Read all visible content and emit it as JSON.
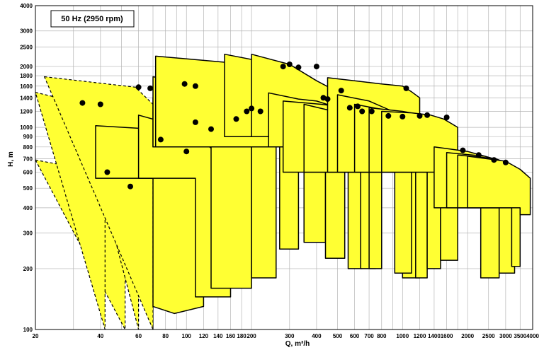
{
  "chart_data": {
    "type": "area",
    "title": "50 Hz (2950 rpm)",
    "xlabel": "Q, m³/h",
    "ylabel": "H, m",
    "xscale": "log",
    "yscale": "log",
    "xlim": [
      20,
      4000
    ],
    "ylim": [
      100,
      4000
    ],
    "grid": true,
    "x_tick_labels": [
      "20",
      "40",
      "60",
      "80",
      "100",
      "120",
      "140",
      "160",
      "180",
      "200",
      "300",
      "400",
      "500",
      "600",
      "700",
      "800",
      "1000",
      "1200",
      "1400",
      "1600",
      "2000",
      "2500",
      "3000",
      "3500",
      "4000"
    ],
    "y_tick_labels": [
      "100",
      "200",
      "300",
      "400",
      "500",
      "600",
      "700",
      "800",
      "900",
      "1000",
      "1200",
      "1400",
      "1600",
      "1800",
      "2000",
      "2500",
      "3000",
      "4000"
    ],
    "fill_color": "#ffff33",
    "series": [
      {
        "outline": "dashed",
        "points": [
          [
            18,
            690
          ],
          [
            40,
            600
          ],
          [
            52,
            500
          ],
          [
            52,
            100
          ]
        ]
      },
      {
        "outline": "dashed",
        "points": [
          [
            40,
            600
          ],
          [
            55,
            510
          ],
          [
            70,
            390
          ],
          [
            70,
            100
          ]
        ]
      },
      {
        "outline": "dashed",
        "points": [
          [
            18,
            1490
          ],
          [
            32,
            1320
          ],
          [
            42,
            1000
          ],
          [
            42,
            100
          ]
        ]
      },
      {
        "outline": "dashed",
        "points": [
          [
            32,
            1320
          ],
          [
            50,
            1200
          ],
          [
            60,
            1000
          ],
          [
            60,
            100
          ]
        ]
      },
      {
        "outline": "dashed",
        "points": [
          [
            22,
            1780
          ],
          [
            58,
            1580
          ],
          [
            70,
            1300
          ],
          [
            70,
            100
          ]
        ]
      },
      {
        "outline": "solid",
        "points": [
          [
            38,
            1020
          ],
          [
            70,
            980
          ],
          [
            100,
            800
          ],
          [
            120,
            600
          ],
          [
            120,
            130
          ],
          [
            88,
            120
          ],
          [
            70,
            130
          ],
          [
            70,
            560
          ],
          [
            38,
            560
          ]
        ]
      },
      {
        "outline": "solid",
        "points": [
          [
            60,
            1150
          ],
          [
            96,
            1000
          ],
          [
            130,
            790
          ],
          [
            160,
            600
          ],
          [
            160,
            145
          ],
          [
            110,
            145
          ],
          [
            110,
            560
          ],
          [
            60,
            560
          ]
        ]
      },
      {
        "outline": "solid",
        "points": [
          [
            70,
            1400
          ],
          [
            96,
            1300
          ],
          [
            130,
            1200
          ],
          [
            150,
            1100
          ],
          [
            170,
            1000
          ],
          [
            200,
            840
          ],
          [
            200,
            160
          ],
          [
            130,
            160
          ],
          [
            130,
            800
          ],
          [
            70,
            800
          ]
        ]
      },
      {
        "outline": "solid",
        "points": [
          [
            70,
            1780
          ],
          [
            110,
            1620
          ],
          [
            130,
            1550
          ],
          [
            145,
            1400
          ],
          [
            220,
            1260
          ],
          [
            260,
            1010
          ],
          [
            260,
            180
          ],
          [
            200,
            180
          ],
          [
            200,
            800
          ],
          [
            70,
            800
          ]
        ]
      },
      {
        "outline": "solid",
        "points": [
          [
            72,
            2250
          ],
          [
            150,
            2100
          ],
          [
            190,
            2050
          ],
          [
            220,
            1990
          ],
          [
            260,
            1850
          ],
          [
            330,
            1400
          ],
          [
            330,
            250
          ],
          [
            270,
            250
          ],
          [
            270,
            800
          ],
          [
            72,
            800
          ]
        ]
      },
      {
        "outline": "solid",
        "points": [
          [
            150,
            2300
          ],
          [
            250,
            2070
          ],
          [
            320,
            1860
          ],
          [
            400,
            1450
          ],
          [
            440,
            1350
          ],
          [
            440,
            270
          ],
          [
            350,
            270
          ],
          [
            350,
            900
          ],
          [
            150,
            900
          ]
        ]
      },
      {
        "outline": "solid",
        "points": [
          [
            200,
            2300
          ],
          [
            300,
            2050
          ],
          [
            400,
            1700
          ],
          [
            500,
            1500
          ],
          [
            540,
            1300
          ],
          [
            540,
            225
          ],
          [
            440,
            225
          ],
          [
            440,
            900
          ],
          [
            200,
            900
          ]
        ]
      },
      {
        "outline": "solid",
        "points": [
          [
            240,
            1480
          ],
          [
            330,
            1380
          ],
          [
            400,
            1350
          ],
          [
            500,
            1250
          ],
          [
            560,
            1200
          ],
          [
            650,
            900
          ],
          [
            650,
            200
          ],
          [
            560,
            200
          ],
          [
            560,
            800
          ],
          [
            240,
            800
          ]
        ]
      },
      {
        "outline": "solid",
        "points": [
          [
            280,
            1350
          ],
          [
            420,
            1300
          ],
          [
            560,
            1250
          ],
          [
            650,
            1130
          ],
          [
            750,
            1000
          ],
          [
            750,
            200
          ],
          [
            640,
            200
          ],
          [
            640,
            600
          ],
          [
            280,
            600
          ]
        ]
      },
      {
        "outline": "solid",
        "points": [
          [
            350,
            1300
          ],
          [
            480,
            1200
          ],
          [
            600,
            1150
          ],
          [
            720,
            1050
          ],
          [
            800,
            1000
          ],
          [
            800,
            200
          ],
          [
            700,
            200
          ],
          [
            700,
            600
          ],
          [
            350,
            600
          ]
        ]
      },
      {
        "outline": "solid",
        "points": [
          [
            450,
            1760
          ],
          [
            600,
            1700
          ],
          [
            800,
            1640
          ],
          [
            1000,
            1600
          ],
          [
            1100,
            1500
          ],
          [
            1200,
            1400
          ],
          [
            1200,
            180
          ],
          [
            1000,
            180
          ],
          [
            1000,
            600
          ],
          [
            450,
            600
          ]
        ]
      },
      {
        "outline": "solid",
        "points": [
          [
            500,
            1450
          ],
          [
            700,
            1350
          ],
          [
            900,
            1200
          ],
          [
            1000,
            1100
          ],
          [
            1100,
            1000
          ],
          [
            1100,
            190
          ],
          [
            920,
            190
          ],
          [
            920,
            600
          ],
          [
            500,
            600
          ]
        ]
      },
      {
        "outline": "solid",
        "points": [
          [
            600,
            1300
          ],
          [
            900,
            1200
          ],
          [
            1050,
            1150
          ],
          [
            1300,
            1000
          ],
          [
            1300,
            180
          ],
          [
            1150,
            180
          ],
          [
            1150,
            600
          ],
          [
            600,
            600
          ]
        ]
      },
      {
        "outline": "solid",
        "points": [
          [
            700,
            1250
          ],
          [
            1000,
            1200
          ],
          [
            1250,
            1150
          ],
          [
            1500,
            1000
          ],
          [
            1500,
            200
          ],
          [
            1300,
            200
          ],
          [
            1300,
            600
          ],
          [
            700,
            600
          ]
        ]
      },
      {
        "outline": "solid",
        "points": [
          [
            800,
            1200
          ],
          [
            1100,
            1180
          ],
          [
            1350,
            1150
          ],
          [
            1550,
            1100
          ],
          [
            1800,
            1000
          ],
          [
            1800,
            220
          ],
          [
            1500,
            220
          ],
          [
            1500,
            600
          ],
          [
            800,
            600
          ]
        ]
      },
      {
        "outline": "solid",
        "points": [
          [
            1400,
            800
          ],
          [
            2000,
            760
          ],
          [
            2400,
            720
          ],
          [
            2800,
            620
          ],
          [
            2800,
            180
          ],
          [
            2300,
            180
          ],
          [
            2300,
            400
          ],
          [
            1400,
            400
          ]
        ]
      },
      {
        "outline": "solid",
        "points": [
          [
            1600,
            750
          ],
          [
            2400,
            720
          ],
          [
            2900,
            680
          ],
          [
            3300,
            600
          ],
          [
            3300,
            190
          ],
          [
            2800,
            190
          ],
          [
            2800,
            400
          ],
          [
            1600,
            400
          ]
        ]
      },
      {
        "outline": "solid",
        "points": [
          [
            1800,
            730
          ],
          [
            2700,
            700
          ],
          [
            3100,
            660
          ],
          [
            3500,
            600
          ],
          [
            3500,
            205
          ],
          [
            3200,
            205
          ],
          [
            3200,
            400
          ],
          [
            1800,
            400
          ]
        ]
      },
      {
        "outline": "solid",
        "points": [
          [
            2000,
            720
          ],
          [
            3000,
            680
          ],
          [
            3500,
            620
          ],
          [
            3900,
            560
          ],
          [
            3900,
            370
          ],
          [
            3500,
            370
          ],
          [
            3500,
            400
          ],
          [
            2000,
            400
          ]
        ]
      }
    ],
    "points": [
      [
        43,
        600
      ],
      [
        55,
        510
      ],
      [
        33,
        1320
      ],
      [
        40,
        1300
      ],
      [
        60,
        1580
      ],
      [
        68,
        1560
      ],
      [
        76,
        870
      ],
      [
        100,
        760
      ],
      [
        110,
        1060
      ],
      [
        130,
        980
      ],
      [
        98,
        1640
      ],
      [
        110,
        1600
      ],
      [
        170,
        1100
      ],
      [
        200,
        1240
      ],
      [
        190,
        1200
      ],
      [
        220,
        1200
      ],
      [
        280,
        2000
      ],
      [
        300,
        2050
      ],
      [
        330,
        1980
      ],
      [
        400,
        2000
      ],
      [
        430,
        1400
      ],
      [
        450,
        1380
      ],
      [
        520,
        1520
      ],
      [
        570,
        1250
      ],
      [
        620,
        1270
      ],
      [
        650,
        1200
      ],
      [
        720,
        1200
      ],
      [
        860,
        1140
      ],
      [
        1000,
        1130
      ],
      [
        1040,
        1560
      ],
      [
        1200,
        1140
      ],
      [
        1300,
        1150
      ],
      [
        1600,
        1120
      ],
      [
        1900,
        770
      ],
      [
        2250,
        730
      ],
      [
        2650,
        690
      ],
      [
        3000,
        670
      ]
    ]
  }
}
